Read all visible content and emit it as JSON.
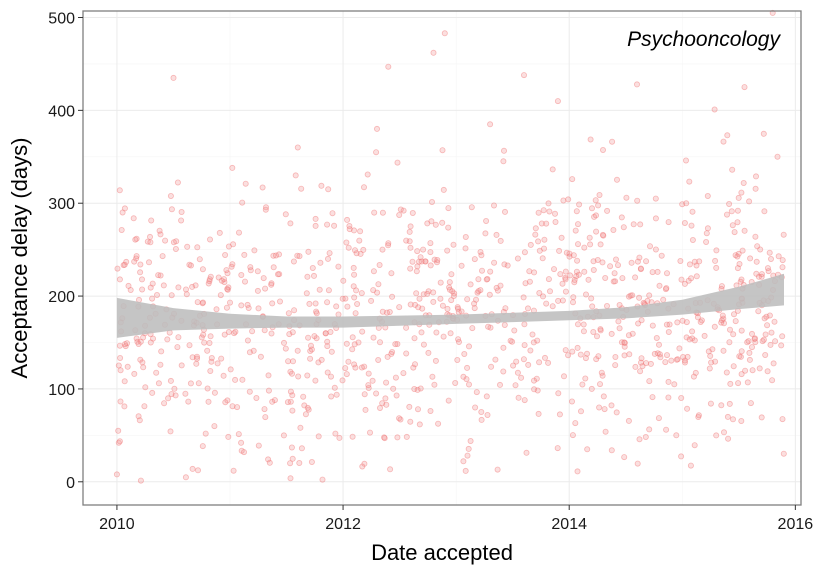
{
  "chart_data": {
    "type": "scatter",
    "title": "",
    "annotation": "Psychooncology",
    "xlabel": "Date accepted",
    "ylabel": "Acceptance delay (days)",
    "xlim": [
      2009.7,
      2016.05
    ],
    "ylim": [
      -25,
      507
    ],
    "x_ticks": [
      2010,
      2012,
      2014,
      2016
    ],
    "x_tick_labels": [
      "2010",
      "2012",
      "2014",
      "2016"
    ],
    "y_ticks": [
      0,
      100,
      200,
      300,
      400,
      500
    ],
    "y_tick_labels": [
      "0",
      "100",
      "200",
      "300",
      "400",
      "500"
    ],
    "grid": true,
    "point_color": "#f28c8c",
    "ribbon_color": "#bdbdbd",
    "point_count_estimate": 1100,
    "points_x_range": [
      2010.0,
      2015.9
    ],
    "smooth_trend": {
      "x": [
        2010.0,
        2010.5,
        2011.0,
        2011.5,
        2012.0,
        2012.5,
        2013.0,
        2013.5,
        2014.0,
        2014.5,
        2015.0,
        2015.5,
        2015.9
      ],
      "fit": [
        177,
        175,
        173,
        172,
        172,
        173,
        175,
        177,
        179,
        182,
        188,
        198,
        207
      ],
      "lower": [
        155,
        163,
        165,
        166,
        166,
        168,
        170,
        172,
        174,
        176,
        180,
        186,
        190
      ],
      "upper": [
        198,
        187,
        181,
        178,
        178,
        179,
        180,
        182,
        184,
        188,
        196,
        210,
        224
      ]
    },
    "sample_points": {
      "x": [
        2010.0,
        2010.05,
        2010.3,
        2010.5,
        2010.9,
        2011.1,
        2011.6,
        2011.9,
        2012.3,
        2012.4,
        2012.8,
        2012.9,
        2013.3,
        2013.6,
        2013.9,
        2014.2,
        2014.6,
        2015.3,
        2015.55,
        2015.8
      ],
      "y": [
        8,
        290,
        150,
        435,
        220,
        190,
        360,
        140,
        380,
        447,
        462,
        483,
        385,
        438,
        410,
        100,
        428,
        50,
        425,
        505
      ]
    }
  }
}
